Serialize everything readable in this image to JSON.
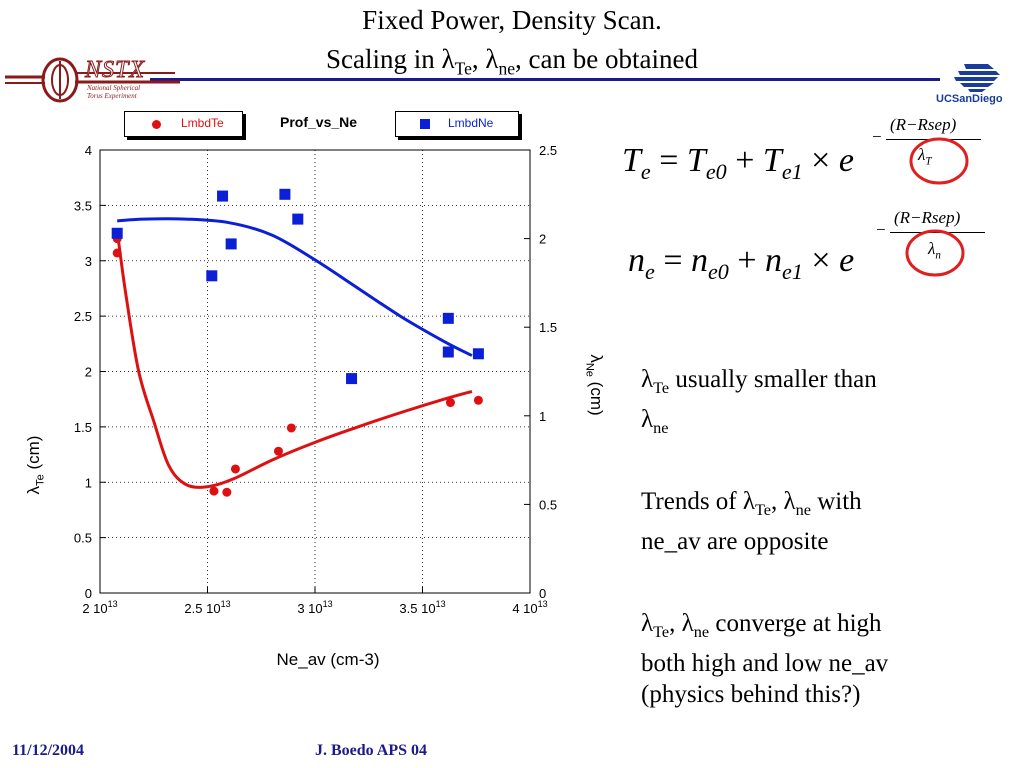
{
  "slide": {
    "title_line1": "Fixed Power, Density Scan.",
    "title_line2_prefix": "Scaling in ",
    "title_lambda": "λ",
    "title_sub_te": "Te",
    "title_sep": ", ",
    "title_sub_ne": "ne",
    "title_suffix": ", can be obtained",
    "logo_left_text": "NSTX",
    "logo_left_caption1": "National Spherical",
    "logo_left_caption2": "Torus Experiment",
    "logo_right_text": "UCSanDiego",
    "footer_date": "11/12/2004",
    "footer_author": "J. Boedo APS 04"
  },
  "equations": {
    "eq1_lhs": "T",
    "eq1_lhs_sub": "e",
    "eq1_t0": "T",
    "eq1_t0_sub": "e0",
    "eq1_t1": "T",
    "eq1_t1_sub": "e1",
    "eq1_exp_num": "(R−Rsep)",
    "eq1_exp_den": "λ",
    "eq1_exp_den_sub": "T",
    "eq2_lhs": "n",
    "eq2_lhs_sub": "e",
    "eq2_t0": "n",
    "eq2_t0_sub": "e0",
    "eq2_t1": "n",
    "eq2_t1_sub": "e1",
    "eq2_exp_num": "(R−Rsep)",
    "eq2_exp_den": "λ",
    "eq2_exp_den_sub": "n",
    "plus": "+",
    "times": "×",
    "equals": "=",
    "e": "e",
    "minus": "−"
  },
  "bullets": {
    "b1_lambda": "λ",
    "b1_sub1": "Te",
    "b1_text": " usually smaller than ",
    "b1_lambda2": "λ",
    "b1_sub2": "ne",
    "b2_prefix": "Trends of  ",
    "b2_lambda": "λ",
    "b2_sub1": "Te",
    "b2_sep": ", ",
    "b2_lambda2": "λ",
    "b2_sub2": "ne",
    "b2_suffix": " with",
    "b2_line2": "ne_av are opposite",
    "b3_lambda": "λ",
    "b3_sub1": "Te",
    "b3_sep": ", ",
    "b3_lambda2": "λ",
    "b3_sub2": "ne",
    "b3_suffix": " converge at high",
    "b3_line2": "both high and low ne_av",
    "b3_line3": "(physics behind this?)"
  },
  "chart_data": {
    "type": "scatter",
    "title": "Prof_vs_Ne",
    "xlabel": "Ne_av (cm-3)",
    "ylabel_left_lambda": "λ",
    "ylabel_left_sub": "Te",
    "ylabel_left_unit": " (cm)",
    "ylabel_right_lambda": "λ",
    "ylabel_right_sub": "Ne",
    "ylabel_right_unit": " (cm)",
    "xlim": [
      20000000000000.0,
      40000000000000.0
    ],
    "ylim_left": [
      0,
      4
    ],
    "ylim_right": [
      0,
      2.5
    ],
    "x_ticks": [
      {
        "value": 20000000000000.0,
        "mant": "2 10",
        "exp": "13"
      },
      {
        "value": 25000000000000.0,
        "mant": "2.5 10",
        "exp": "13"
      },
      {
        "value": 30000000000000.0,
        "mant": "3 10",
        "exp": "13"
      },
      {
        "value": 35000000000000.0,
        "mant": "3.5 10",
        "exp": "13"
      },
      {
        "value": 40000000000000.0,
        "mant": "4 10",
        "exp": "13"
      }
    ],
    "y_left_ticks": [
      "0",
      "0.5",
      "1",
      "1.5",
      "2",
      "2.5",
      "3",
      "3.5",
      "4"
    ],
    "y_left_tick_values": [
      0,
      0.5,
      1,
      1.5,
      2,
      2.5,
      3,
      3.5,
      4
    ],
    "y_right_ticks": [
      "0",
      "0.5",
      "1",
      "1.5",
      "2",
      "2.5"
    ],
    "y_right_tick_values": [
      0,
      0.5,
      1,
      1.5,
      2,
      2.5
    ],
    "grid": true,
    "legend_position": "top",
    "series": [
      {
        "name": "LmbdTe",
        "axis": "left",
        "marker": "circle",
        "color": "#dd1111",
        "points": [
          [
            20800000000000.0,
            3.2
          ],
          [
            20800000000000.0,
            3.07
          ],
          [
            25300000000000.0,
            0.92
          ],
          [
            25900000000000.0,
            0.91
          ],
          [
            26300000000000.0,
            1.12
          ],
          [
            28300000000000.0,
            1.28
          ],
          [
            28900000000000.0,
            1.49
          ],
          [
            36300000000000.0,
            1.72
          ],
          [
            37600000000000.0,
            1.74
          ]
        ],
        "fit": [
          [
            20800000000000.0,
            3.27
          ],
          [
            21200000000000.0,
            2.7
          ],
          [
            21800000000000.0,
            2.0
          ],
          [
            22500000000000.0,
            1.55
          ],
          [
            23200000000000.0,
            1.15
          ],
          [
            24000000000000.0,
            0.98
          ],
          [
            25000000000000.0,
            0.96
          ],
          [
            26200000000000.0,
            1.03
          ],
          [
            28000000000000.0,
            1.2
          ],
          [
            30000000000000.0,
            1.36
          ],
          [
            32000000000000.0,
            1.5
          ],
          [
            34000000000000.0,
            1.63
          ],
          [
            36000000000000.0,
            1.75
          ],
          [
            37300000000000.0,
            1.82
          ]
        ]
      },
      {
        "name": "LmbdNe",
        "axis": "right",
        "marker": "square",
        "color": "#0a1fd6",
        "points": [
          [
            20800000000000.0,
            2.03
          ],
          [
            25200000000000.0,
            1.79
          ],
          [
            25700000000000.0,
            2.24
          ],
          [
            26100000000000.0,
            1.97
          ],
          [
            28600000000000.0,
            2.25
          ],
          [
            29200000000000.0,
            2.11
          ],
          [
            31700000000000.0,
            1.21
          ],
          [
            36200000000000.0,
            1.55
          ],
          [
            36200000000000.0,
            1.36
          ],
          [
            37600000000000.0,
            1.35
          ]
        ],
        "fit": [
          [
            20800000000000.0,
            2.1
          ],
          [
            22000000000000.0,
            2.11
          ],
          [
            24000000000000.0,
            2.11
          ],
          [
            26000000000000.0,
            2.09
          ],
          [
            28000000000000.0,
            2.02
          ],
          [
            30000000000000.0,
            1.88
          ],
          [
            32000000000000.0,
            1.72
          ],
          [
            34000000000000.0,
            1.56
          ],
          [
            36000000000000.0,
            1.42
          ],
          [
            37300000000000.0,
            1.34
          ]
        ]
      }
    ]
  }
}
